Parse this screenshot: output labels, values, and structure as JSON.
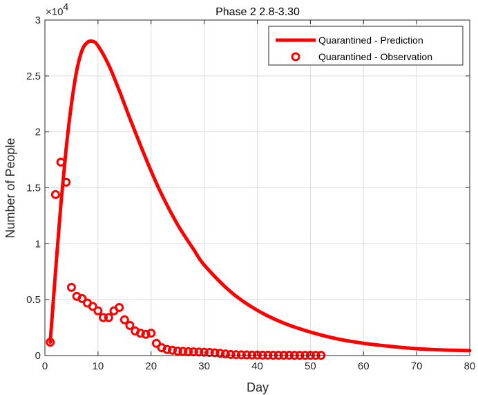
{
  "chart_data": {
    "type": "line",
    "title": "Phase 2 2.8-3.30",
    "xlabel": "Day",
    "ylabel": "Number of People",
    "y_exponent_label": "×10",
    "y_exponent_power": "4",
    "xlim": [
      0,
      80
    ],
    "ylim": [
      0,
      30000
    ],
    "x_ticks": [
      0,
      10,
      20,
      30,
      40,
      50,
      60,
      70,
      80
    ],
    "x_tick_labels": [
      "0",
      "10",
      "20",
      "30",
      "40",
      "50",
      "60",
      "70",
      "80"
    ],
    "y_ticks": [
      0,
      5000,
      10000,
      15000,
      20000,
      25000,
      30000
    ],
    "y_tick_labels": [
      "0",
      "0.5",
      "1",
      "1.5",
      "2",
      "2.5",
      "3"
    ],
    "grid": true,
    "legend_position": "top-right",
    "series": [
      {
        "name": "Quarantined - Prediction",
        "style": "line",
        "color": "#ff0000",
        "x": [
          1,
          2,
          3,
          4,
          5,
          6,
          7,
          8,
          9,
          10,
          12,
          14,
          16,
          18,
          20,
          22,
          25,
          28,
          30,
          35,
          40,
          45,
          50,
          55,
          60,
          65,
          70,
          75,
          80
        ],
        "y": [
          1200,
          7500,
          13500,
          18500,
          22500,
          25500,
          27300,
          28000,
          28100,
          27700,
          26000,
          23700,
          21200,
          18800,
          16500,
          14400,
          11700,
          9500,
          8100,
          5700,
          4050,
          2900,
          2100,
          1500,
          1100,
          830,
          620,
          500,
          450
        ]
      },
      {
        "name": "Quarantined - Observation",
        "style": "markers",
        "color": "#ff0000",
        "x": [
          1,
          2,
          3,
          4,
          5,
          6,
          7,
          8,
          9,
          10,
          11,
          12,
          13,
          14,
          15,
          16,
          17,
          18,
          19,
          20,
          21,
          22,
          23,
          24,
          25,
          26,
          27,
          28,
          29,
          30,
          31,
          32,
          33,
          34,
          35,
          36,
          37,
          38,
          39,
          40,
          41,
          42,
          43,
          44,
          45,
          46,
          47,
          48,
          49,
          50,
          51,
          52
        ],
        "y": [
          1200,
          14400,
          17300,
          15500,
          6100,
          5300,
          5100,
          4700,
          4400,
          4000,
          3400,
          3400,
          4000,
          4300,
          3200,
          2700,
          2200,
          2000,
          1900,
          2000,
          1100,
          700,
          550,
          480,
          400,
          380,
          350,
          330,
          320,
          300,
          280,
          250,
          200,
          150,
          100,
          80,
          70,
          60,
          50,
          50,
          40,
          40,
          30,
          30,
          30,
          30,
          20,
          20,
          20,
          20,
          20,
          20
        ]
      }
    ]
  }
}
